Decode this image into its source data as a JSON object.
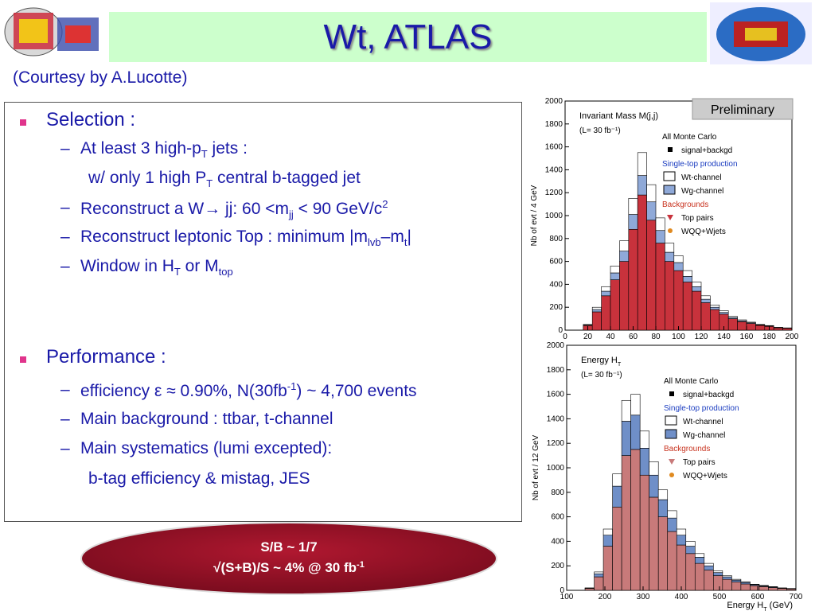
{
  "header": {
    "title": "Wt, ATLAS",
    "credit": "(Courtesy by A.Lucotte)"
  },
  "bullets": [
    {
      "level": 1,
      "runs": [
        {
          "t": "Selection :"
        }
      ]
    },
    {
      "level": 2,
      "runs": [
        {
          "t": "At least 3 high-p"
        },
        {
          "t": "T",
          "s": "sub"
        },
        {
          "t": " jets :"
        }
      ]
    },
    {
      "level": 3,
      "runs": [
        {
          "t": "w/ only 1 high P"
        },
        {
          "t": "T",
          "s": "sub"
        },
        {
          "t": " central b-tagged jet"
        }
      ]
    },
    {
      "level": 2,
      "runs": [
        {
          "t": "Reconstruct a W→ jj: 60 <m"
        },
        {
          "t": "jj",
          "s": "sub"
        },
        {
          "t": " < 90 GeV/c"
        },
        {
          "t": "2",
          "s": "sup"
        }
      ]
    },
    {
      "level": 2,
      "runs": [
        {
          "t": "Reconstruct leptonic Top : minimum |m"
        },
        {
          "t": "lvb",
          "s": "sub"
        },
        {
          "t": "–m"
        },
        {
          "t": "t",
          "s": "sub"
        },
        {
          "t": "|"
        }
      ]
    },
    {
      "level": 2,
      "runs": [
        {
          "t": "Window in H"
        },
        {
          "t": "T",
          "s": "sub"
        },
        {
          "t": " or M"
        },
        {
          "t": "top",
          "s": "sub"
        }
      ]
    },
    {
      "level": 1,
      "runs": [
        {
          "t": "Performance :"
        }
      ]
    },
    {
      "level": 2,
      "runs": [
        {
          "t": "efficiency ε ≈ 0.90%,  N(30fb"
        },
        {
          "t": "-1",
          "s": "sup"
        },
        {
          "t": ") ~ 4,700 events"
        }
      ]
    },
    {
      "level": 2,
      "runs": [
        {
          "t": "Main background : ttbar, t-channel"
        }
      ]
    },
    {
      "level": 2,
      "runs": [
        {
          "t": "Main systematics (lumi excepted):"
        }
      ]
    },
    {
      "level": 3,
      "runs": [
        {
          "t": "b-tag efficiency & mistag, JES"
        }
      ]
    }
  ],
  "summary": [
    [
      {
        "t": "S/B ~ 1/7"
      }
    ],
    [
      {
        "t": "√(S+B)/S ~ 4% @ 30 fb"
      },
      {
        "t": "-1",
        "s": "sup"
      }
    ]
  ],
  "chart_data": [
    {
      "type": "histogram",
      "title": [
        {
          "t": "Invariant Mass M(j,j)"
        }
      ],
      "subtitle": "(L= 30 fb⁻¹)",
      "annotation": "Preliminary",
      "ylabel": "Nb of evt / 4 GeV",
      "legend_heads": [
        "All Monte Carlo",
        "Single-top production",
        "Backgrounds"
      ],
      "legend_extra": [
        "signal+backgd",
        "WQQ+Wjets"
      ],
      "bins": [
        0,
        8,
        16,
        24,
        32,
        40,
        48,
        56,
        64,
        72,
        80,
        88,
        96,
        104,
        112,
        120,
        128,
        136,
        144,
        152,
        160,
        168,
        176,
        184,
        192,
        200
      ],
      "series": [
        {
          "name": "Top pairs",
          "color": "#c8323c",
          "values": [
            0,
            0,
            40,
            160,
            300,
            440,
            600,
            880,
            1180,
            960,
            760,
            600,
            520,
            420,
            340,
            240,
            180,
            140,
            100,
            74,
            58,
            42,
            33,
            20,
            16
          ]
        },
        {
          "name": "Wg-channel",
          "color": "#8fa9d8",
          "values": [
            0,
            0,
            5,
            20,
            40,
            60,
            90,
            130,
            170,
            160,
            110,
            80,
            70,
            50,
            40,
            30,
            20,
            15,
            10,
            8,
            6,
            4,
            3,
            3,
            2
          ]
        },
        {
          "name": "Wt-channel",
          "color": "#ffffff",
          "values": [
            0,
            0,
            5,
            20,
            40,
            60,
            90,
            140,
            200,
            150,
            110,
            80,
            60,
            50,
            40,
            30,
            20,
            15,
            10,
            8,
            6,
            4,
            4,
            2,
            2
          ]
        }
      ],
      "xlim": [
        0,
        200
      ],
      "xticks": [
        0,
        20,
        40,
        60,
        80,
        100,
        120,
        140,
        160,
        180,
        200
      ],
      "ylim": [
        0,
        2000
      ],
      "yticks": [
        0,
        200,
        400,
        600,
        800,
        1000,
        1200,
        1400,
        1600,
        1800,
        2000
      ]
    },
    {
      "type": "histogram",
      "title": [
        {
          "t": "Energy H"
        },
        {
          "t": "T",
          "s": "sub"
        }
      ],
      "subtitle": "(L= 30 fb⁻¹)",
      "xlabel": [
        {
          "t": "Energy H"
        },
        {
          "t": "T",
          "s": "sub"
        },
        {
          "t": " (GeV)"
        }
      ],
      "ylabel": "Nb of evt / 12 GeV",
      "legend_heads": [
        "All Monte Carlo",
        "Single-top production",
        "Backgrounds"
      ],
      "legend_extra": [
        "signal+backgd",
        "WQQ+Wjets"
      ],
      "bins": [
        100,
        124,
        148,
        172,
        196,
        220,
        244,
        268,
        292,
        316,
        340,
        364,
        388,
        412,
        436,
        460,
        484,
        508,
        532,
        556,
        580,
        604,
        628,
        652,
        676,
        700
      ],
      "series": [
        {
          "name": "Top pairs",
          "color": "#c87a7a",
          "values": [
            0,
            0,
            15,
            110,
            360,
            680,
            1100,
            1150,
            940,
            760,
            600,
            480,
            370,
            300,
            220,
            165,
            120,
            90,
            68,
            52,
            38,
            30,
            22,
            15,
            11
          ]
        },
        {
          "name": "Wg-channel",
          "color": "#6f8fc8",
          "values": [
            0,
            0,
            3,
            25,
            90,
            170,
            280,
            280,
            220,
            180,
            140,
            110,
            80,
            60,
            50,
            35,
            25,
            20,
            15,
            12,
            8,
            6,
            5,
            3,
            2
          ]
        },
        {
          "name": "Wt-channel",
          "color": "#ffffff",
          "values": [
            0,
            0,
            2,
            15,
            50,
            100,
            170,
            170,
            140,
            110,
            80,
            60,
            50,
            40,
            30,
            20,
            15,
            10,
            7,
            6,
            4,
            4,
            3,
            2,
            2
          ]
        }
      ],
      "xlim": [
        100,
        700
      ],
      "xticks": [
        100,
        200,
        300,
        400,
        500,
        600,
        700
      ],
      "ylim": [
        0,
        2000
      ],
      "yticks": [
        0,
        200,
        400,
        600,
        800,
        1000,
        1200,
        1400,
        1600,
        1800,
        2000
      ]
    }
  ]
}
